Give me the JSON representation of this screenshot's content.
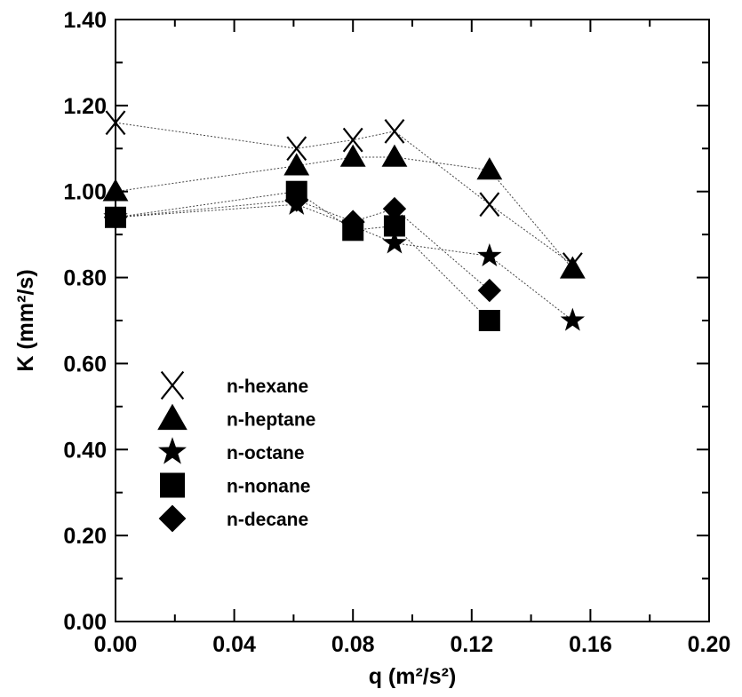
{
  "chart_data": {
    "type": "scatter",
    "xlabel": "q (m²/s²)",
    "ylabel": "K  (mm²/s)",
    "xlim": [
      0.0,
      0.2
    ],
    "ylim": [
      0.0,
      1.4
    ],
    "x_ticks": [
      "0.00",
      "0.04",
      "0.08",
      "0.12",
      "0.16",
      "0.20"
    ],
    "y_ticks": [
      "0.00",
      "0.20",
      "0.40",
      "0.60",
      "0.80",
      "1.00",
      "1.20",
      "1.40"
    ],
    "legend_position": "left-lower",
    "series": [
      {
        "name": "n-hexane",
        "marker": "x-icon",
        "x": [
          0.0,
          0.061,
          0.08,
          0.094,
          0.126,
          0.154
        ],
        "y": [
          1.16,
          1.1,
          1.12,
          1.14,
          0.97,
          0.83
        ]
      },
      {
        "name": "n-heptane",
        "marker": "triangle-icon",
        "x": [
          0.0,
          0.061,
          0.08,
          0.094,
          0.126,
          0.154
        ],
        "y": [
          1.0,
          1.06,
          1.08,
          1.08,
          1.05,
          0.82
        ]
      },
      {
        "name": "n-octane",
        "marker": "star-icon",
        "x": [
          0.0,
          0.061,
          0.08,
          0.094,
          0.126,
          0.154
        ],
        "y": [
          0.94,
          0.97,
          0.92,
          0.88,
          0.85,
          0.7
        ]
      },
      {
        "name": "n-nonane",
        "marker": "square-icon",
        "x": [
          0.0,
          0.061,
          0.08,
          0.094,
          0.126
        ],
        "y": [
          0.94,
          1.0,
          0.91,
          0.92,
          0.7
        ]
      },
      {
        "name": "n-decane",
        "marker": "diamond-icon",
        "x": [
          0.0,
          0.061,
          0.08,
          0.094,
          0.126
        ],
        "y": [
          0.94,
          0.98,
          0.93,
          0.96,
          0.77
        ]
      }
    ]
  }
}
